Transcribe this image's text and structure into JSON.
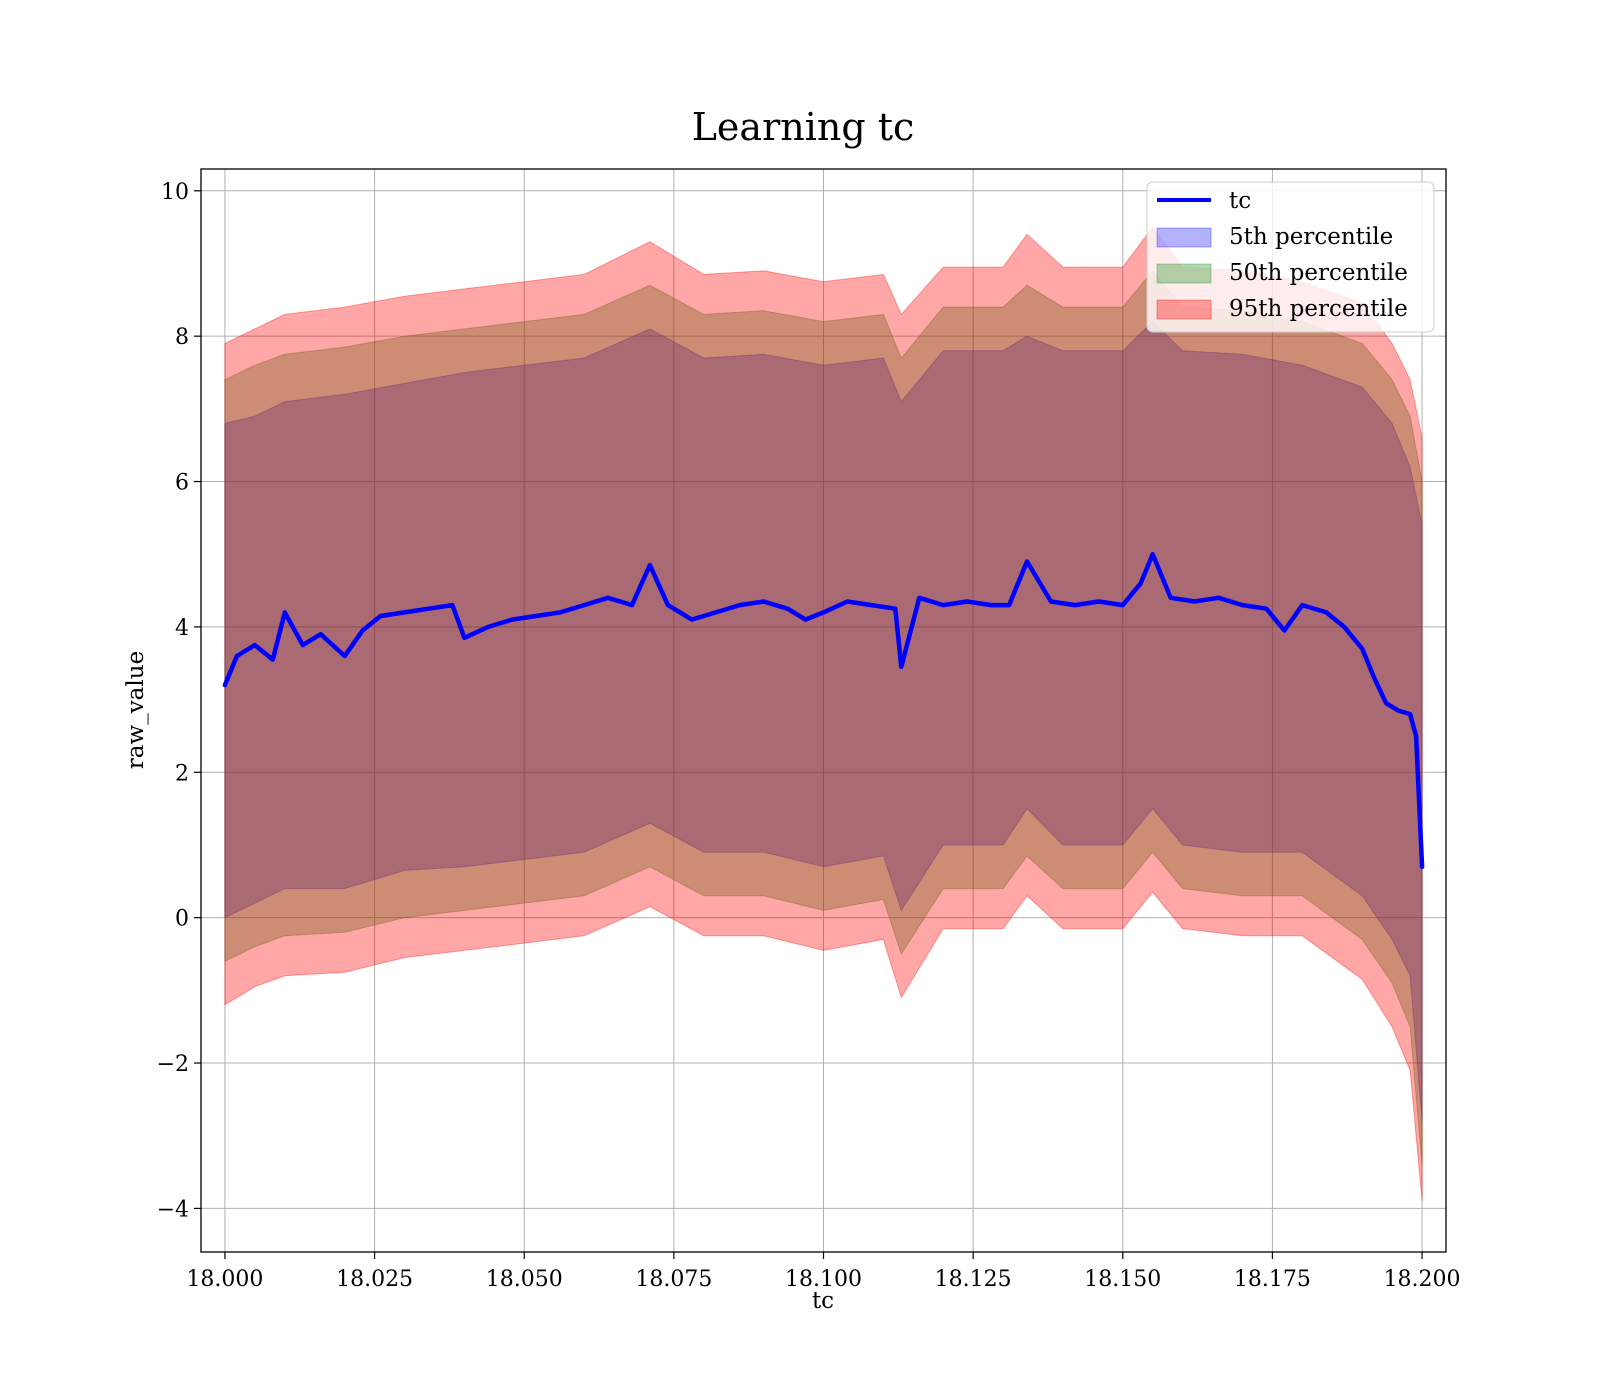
{
  "chart_data": {
    "type": "area",
    "title": "Learning tc",
    "xlabel": "tc",
    "ylabel": "raw_value",
    "xlim": [
      17.996,
      18.204
    ],
    "ylim": [
      -4.6,
      10.3
    ],
    "x_ticks": [
      18.0,
      18.025,
      18.05,
      18.075,
      18.1,
      18.125,
      18.15,
      18.175,
      18.2
    ],
    "x_tick_labels": [
      "18.000",
      "18.025",
      "18.050",
      "18.075",
      "18.100",
      "18.125",
      "18.150",
      "18.175",
      "18.200"
    ],
    "y_ticks": [
      -4,
      -2,
      0,
      2,
      4,
      6,
      8,
      10
    ],
    "y_tick_labels": [
      "−4",
      "−2",
      "0",
      "2",
      "4",
      "6",
      "8",
      "10"
    ],
    "grid": true,
    "legend_position": "top-right",
    "mean_line": {
      "name": "tc",
      "color": "#0000ff",
      "x": [
        18.0,
        18.002,
        18.005,
        18.008,
        18.01,
        18.013,
        18.016,
        18.02,
        18.023,
        18.026,
        18.03,
        18.034,
        18.038,
        18.04,
        18.044,
        18.048,
        18.052,
        18.056,
        18.06,
        18.064,
        18.068,
        18.071,
        18.074,
        18.078,
        18.082,
        18.086,
        18.09,
        18.094,
        18.097,
        18.1,
        18.104,
        18.108,
        18.112,
        18.113,
        18.116,
        18.12,
        18.124,
        18.128,
        18.131,
        18.134,
        18.138,
        18.142,
        18.146,
        18.15,
        18.153,
        18.155,
        18.158,
        18.162,
        18.166,
        18.17,
        18.174,
        18.177,
        18.18,
        18.184,
        18.187,
        18.19,
        18.192,
        18.194,
        18.196,
        18.198,
        18.199,
        18.2
      ],
      "y": [
        3.2,
        3.6,
        3.75,
        3.55,
        4.2,
        3.75,
        3.9,
        3.6,
        3.95,
        4.15,
        4.2,
        4.25,
        4.3,
        3.85,
        4.0,
        4.1,
        4.15,
        4.2,
        4.3,
        4.4,
        4.3,
        4.85,
        4.3,
        4.1,
        4.2,
        4.3,
        4.35,
        4.25,
        4.1,
        4.2,
        4.35,
        4.3,
        4.25,
        3.45,
        4.4,
        4.3,
        4.35,
        4.3,
        4.3,
        4.9,
        4.35,
        4.3,
        4.35,
        4.3,
        4.6,
        5.0,
        4.4,
        4.35,
        4.4,
        4.3,
        4.25,
        3.95,
        4.3,
        4.2,
        4.0,
        3.7,
        3.3,
        2.95,
        2.85,
        2.8,
        2.5,
        0.7
      ]
    },
    "bands": [
      {
        "name": "5th percentile",
        "color": "#0000ff",
        "opacity": 0.3,
        "x": [
          18.0,
          18.005,
          18.01,
          18.02,
          18.03,
          18.04,
          18.05,
          18.06,
          18.071,
          18.08,
          18.09,
          18.1,
          18.11,
          18.113,
          18.12,
          18.13,
          18.134,
          18.14,
          18.15,
          18.155,
          18.16,
          18.17,
          18.18,
          18.19,
          18.195,
          18.198,
          18.2
        ],
        "upper": [
          6.8,
          6.9,
          7.1,
          7.2,
          7.35,
          7.5,
          7.6,
          7.7,
          8.1,
          7.7,
          7.75,
          7.6,
          7.7,
          7.1,
          7.8,
          7.8,
          8.0,
          7.8,
          7.8,
          8.2,
          7.8,
          7.75,
          7.6,
          7.3,
          6.8,
          6.2,
          5.4
        ],
        "lower": [
          0.0,
          0.2,
          0.4,
          0.4,
          0.65,
          0.7,
          0.8,
          0.9,
          1.3,
          0.9,
          0.9,
          0.7,
          0.85,
          0.1,
          1.0,
          1.0,
          1.5,
          1.0,
          1.0,
          1.5,
          1.0,
          0.9,
          0.9,
          0.3,
          -0.3,
          -0.8,
          -2.8
        ]
      },
      {
        "name": "50th percentile",
        "color": "#008000",
        "opacity": 0.3,
        "x": [
          18.0,
          18.005,
          18.01,
          18.02,
          18.03,
          18.04,
          18.05,
          18.06,
          18.071,
          18.08,
          18.09,
          18.1,
          18.11,
          18.113,
          18.12,
          18.13,
          18.134,
          18.14,
          18.15,
          18.155,
          18.16,
          18.17,
          18.18,
          18.19,
          18.195,
          18.198,
          18.2
        ],
        "upper": [
          7.4,
          7.6,
          7.75,
          7.85,
          8.0,
          8.1,
          8.2,
          8.3,
          8.7,
          8.3,
          8.35,
          8.2,
          8.3,
          7.7,
          8.4,
          8.4,
          8.7,
          8.4,
          8.4,
          8.9,
          8.4,
          8.35,
          8.2,
          7.9,
          7.4,
          6.9,
          6.0
        ],
        "lower": [
          -0.6,
          -0.4,
          -0.25,
          -0.2,
          0.0,
          0.1,
          0.2,
          0.3,
          0.7,
          0.3,
          0.3,
          0.1,
          0.25,
          -0.5,
          0.4,
          0.4,
          0.85,
          0.4,
          0.4,
          0.9,
          0.4,
          0.3,
          0.3,
          -0.3,
          -0.9,
          -1.5,
          -3.4
        ]
      },
      {
        "name": "95th percentile",
        "color": "#ff0000",
        "opacity": 0.35,
        "x": [
          18.0,
          18.005,
          18.01,
          18.02,
          18.03,
          18.04,
          18.05,
          18.06,
          18.071,
          18.08,
          18.09,
          18.1,
          18.11,
          18.113,
          18.12,
          18.13,
          18.134,
          18.14,
          18.15,
          18.155,
          18.16,
          18.17,
          18.18,
          18.19,
          18.195,
          18.198,
          18.2
        ],
        "upper": [
          7.9,
          8.1,
          8.3,
          8.4,
          8.55,
          8.65,
          8.75,
          8.85,
          9.3,
          8.85,
          8.9,
          8.75,
          8.85,
          8.3,
          8.95,
          8.95,
          9.4,
          8.95,
          8.95,
          9.5,
          8.95,
          8.9,
          8.75,
          8.45,
          7.9,
          7.4,
          6.6
        ],
        "lower": [
          -1.2,
          -0.95,
          -0.8,
          -0.75,
          -0.55,
          -0.45,
          -0.35,
          -0.25,
          0.15,
          -0.25,
          -0.25,
          -0.45,
          -0.3,
          -1.1,
          -0.15,
          -0.15,
          0.3,
          -0.15,
          -0.15,
          0.35,
          -0.15,
          -0.25,
          -0.25,
          -0.85,
          -1.5,
          -2.1,
          -3.9
        ]
      }
    ]
  }
}
